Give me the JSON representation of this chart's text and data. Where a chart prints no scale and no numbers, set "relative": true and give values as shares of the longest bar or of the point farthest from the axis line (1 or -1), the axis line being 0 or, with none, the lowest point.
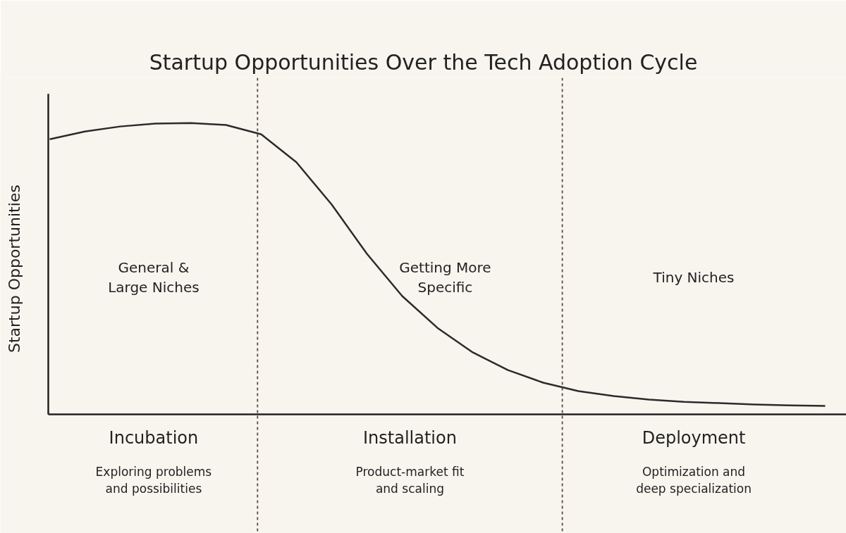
{
  "chart_data": {
    "type": "line",
    "relative": true,
    "title": "Startup Opportunities Over the Tech Adoption Cycle",
    "ylabel": "Startup Opportunities",
    "categories": [
      null,
      null,
      null,
      null,
      null,
      null,
      null,
      null,
      null,
      null,
      null,
      null,
      null,
      null,
      null,
      null,
      null,
      null,
      null,
      null,
      null,
      null,
      null
    ],
    "series": [
      {
        "color": "#2b2b2b",
        "values": [
          0.944,
          0.971,
          0.988,
          0.998,
          1,
          0.993,
          0.961,
          0.865,
          0.72,
          0.551,
          0.406,
          0.297,
          0.213,
          0.152,
          0.109,
          0.08,
          0.063,
          0.051,
          0.043,
          0.039,
          0.034,
          0.031,
          0.029
        ]
      }
    ],
    "annotations": [
      "General &\nLarge Niches",
      "Getting More\nSpecific",
      "Tiny Niches",
      "Incubation",
      "Exploring problems\nand possibilities",
      "Installation",
      "Product-market fit\nand scaling",
      "Deployment",
      "Optimization and\ndeep specialization"
    ],
    "grid": false,
    "marker": "none",
    "line_style": "solid"
  }
}
